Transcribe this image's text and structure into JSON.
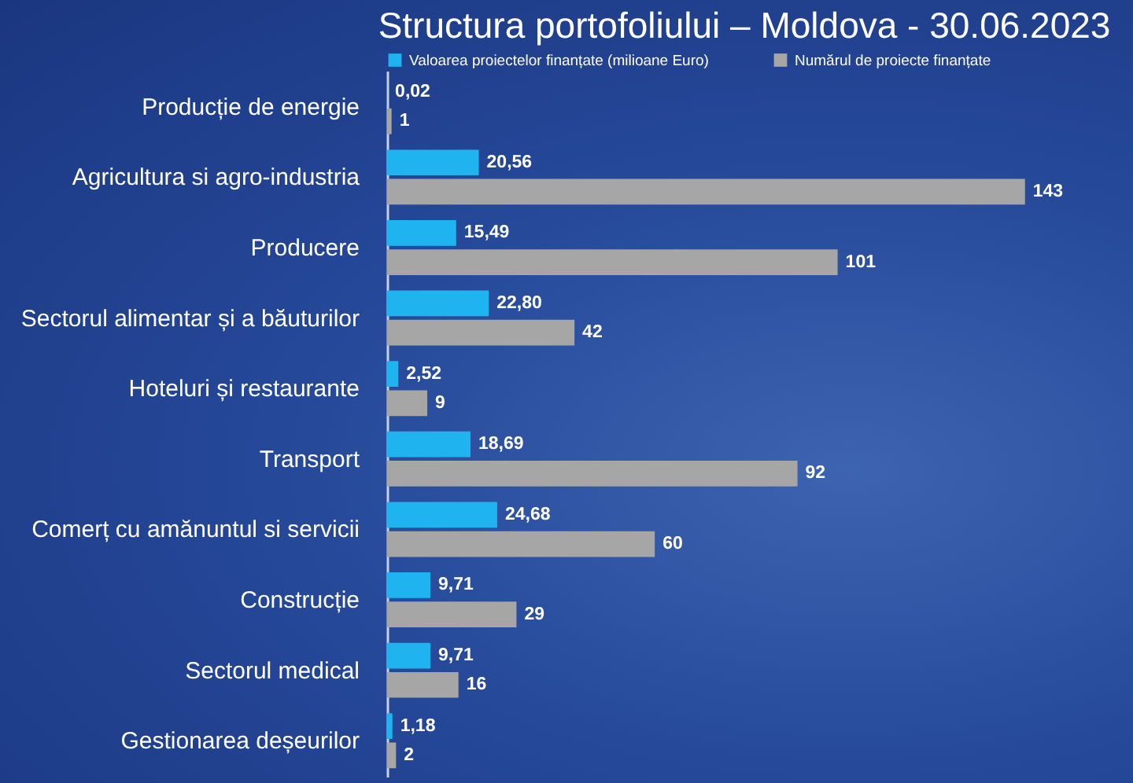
{
  "chart_data": {
    "type": "bar",
    "orientation": "horizontal",
    "title": "Structura portofoliului – Moldova - 30.06.2023",
    "legend": "top",
    "categories": [
      "Producție de energie",
      "Agricultura si agro-industria",
      "Producere",
      "Sectorul alimentar și a băuturilor",
      "Hoteluri și restaurante",
      "Transport",
      "Comerț cu amănuntul si servicii",
      "Construcție",
      "Sectorul medical",
      "Gestionarea deșeurilor"
    ],
    "series": [
      {
        "name": "Valoarea proiectelor finanțate (milioane Euro)",
        "color": "#1fb4f0",
        "values": [
          0.02,
          20.56,
          15.49,
          22.8,
          2.52,
          18.69,
          24.68,
          9.71,
          9.71,
          1.18
        ],
        "value_labels": [
          "0,02",
          "20,56",
          "15,49",
          "22,80",
          "2,52",
          "18,69",
          "24,68",
          "9,71",
          "9,71",
          "1,18"
        ]
      },
      {
        "name": "Numărul de proiecte finanțate",
        "color": "#a6a6a6",
        "values": [
          1,
          143,
          101,
          42,
          9,
          92,
          60,
          29,
          16,
          2
        ],
        "value_labels": [
          "1",
          "143",
          "101",
          "42",
          "9",
          "92",
          "60",
          "29",
          "16",
          "2"
        ]
      }
    ]
  }
}
